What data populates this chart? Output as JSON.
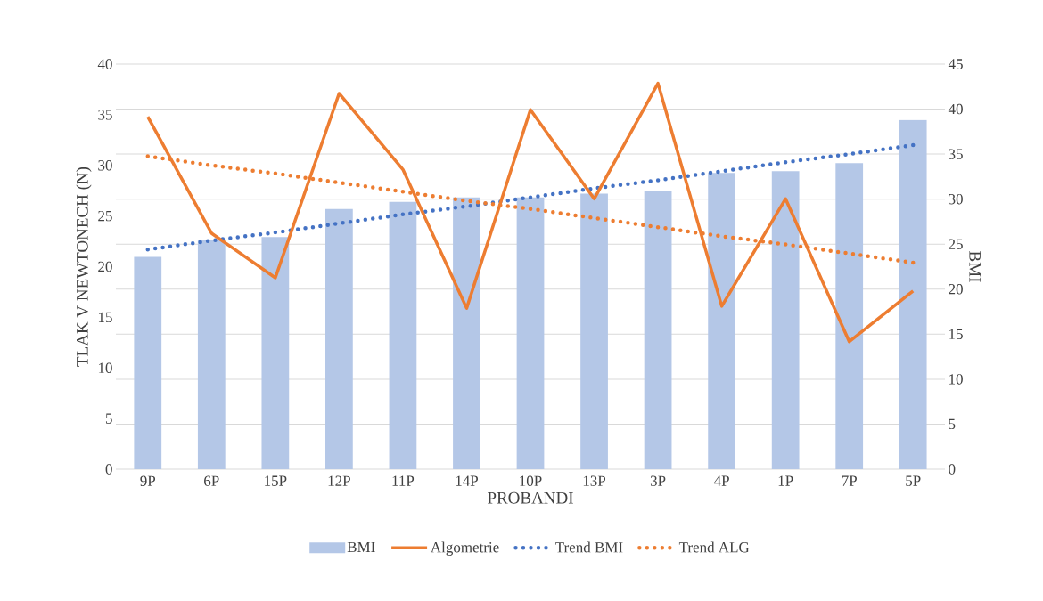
{
  "chart_data": {
    "type": "bar",
    "categories": [
      "9P",
      "6P",
      "15P",
      "12P",
      "11P",
      "14P",
      "10P",
      "13P",
      "3P",
      "4P",
      "1P",
      "7P",
      "5P"
    ],
    "series": [
      {
        "name": "BMI",
        "axis": "y2",
        "color": "#b4c7e7",
        "values": [
          23.6,
          25.5,
          25.8,
          28.9,
          29.7,
          30.2,
          30.2,
          30.6,
          30.9,
          32.9,
          33.1,
          34.0,
          38.8
        ]
      },
      {
        "name": "Algometrie",
        "type": "line",
        "axis": "y",
        "line_style": "solid",
        "color": "#ed7d31",
        "values": [
          34.8,
          23.3,
          18.9,
          37.1,
          29.6,
          15.9,
          35.5,
          26.7,
          38.1,
          16.1,
          26.7,
          12.6,
          17.6
        ]
      },
      {
        "name": "Trend BMI",
        "type": "line",
        "axis": "y2",
        "line_style": "dotted",
        "color": "#4472c4",
        "values": [
          24.4,
          25.4,
          26.3,
          27.3,
          28.3,
          29.2,
          30.2,
          31.2,
          32.1,
          33.1,
          34.1,
          35.0,
          36.0
        ]
      },
      {
        "name": "Trend ALG",
        "type": "line",
        "axis": "y",
        "line_style": "dotted",
        "color": "#ed7d31",
        "values": [
          30.9,
          30.0,
          29.2,
          28.3,
          27.4,
          26.5,
          25.7,
          24.8,
          23.9,
          23.0,
          22.2,
          21.3,
          20.4
        ]
      }
    ],
    "xlabel": "PROBANDI",
    "ylabel": "TLAK V NEWTONECH (N)",
    "y2label": "BMI",
    "ylim": [
      0,
      40
    ],
    "yticks": [
      0,
      5,
      10,
      15,
      20,
      25,
      30,
      35,
      40
    ],
    "y2lim": [
      0,
      45
    ],
    "y2ticks": [
      0,
      5,
      10,
      15,
      20,
      25,
      30,
      35,
      40,
      45
    ],
    "grid": "y",
    "legend": "bottom"
  }
}
